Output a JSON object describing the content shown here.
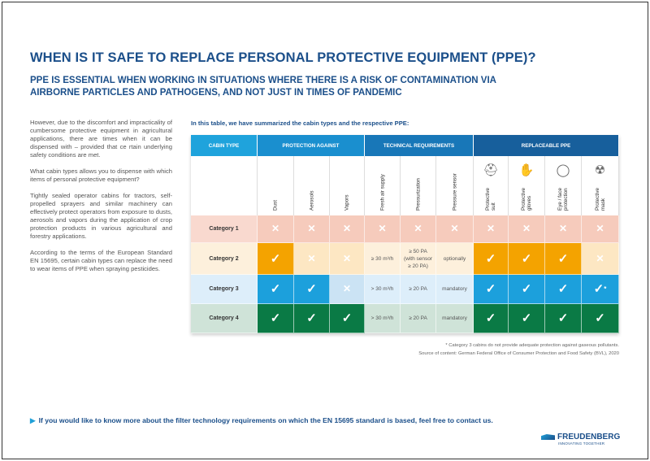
{
  "title": "WHEN IS IT SAFE TO REPLACE PERSONAL PROTECTIVE EQUIPMENT (PPE)?",
  "subtitle": "PPE IS ESSENTIAL WHEN WORKING IN SITUATIONS WHERE THERE IS A RISK OF CONTAMINATION VIA AIRBORNE PARTICLES AND PATHOGENS, AND NOT JUST IN TIMES OF PANDEMIC",
  "left_text": [
    "However, due to the discomfort and impracticality of cumbersome protective equipment in agricultural applications, there are times when it can be dispensed with – provided that ce rtain underlying safety conditions are met.",
    "What cabin types allows you to dispense with which items of personal protective equipment?",
    "Tightly sealed operator cabins for tractors, self-propelled sprayers and similar machinery can effectively protect operators from exposure to dusts, aerosols and vapors during the application of crop protection products in various agricultural and forestry applications.",
    "According to the terms of the European Standard EN 15695, certain cabin types can replace the need to wear items of PPE when spraying pesticides."
  ],
  "table_intro": "In this table, we have summarized the cabin types and the respective PPE:",
  "groups": [
    {
      "label": "CABIN TYPE",
      "color": "#1fa3dc"
    },
    {
      "label": "PROTECTION AGAINST",
      "color": "#1a8fcf"
    },
    {
      "label": "TECHNICAL REQUIREMENTS",
      "color": "#1877b8"
    },
    {
      "label": "REPLACEABLE PPE",
      "color": "#175f9c"
    }
  ],
  "columns": [
    {
      "label": "Dust"
    },
    {
      "label": "Aerosols"
    },
    {
      "label": "Vapors"
    },
    {
      "label": "Fresh air supply"
    },
    {
      "label": "Pressurization"
    },
    {
      "label": "Pressure sensor"
    },
    {
      "label": "Protective\nsuit",
      "icon": "suit-icon"
    },
    {
      "label": "Protective\ngloves",
      "icon": "gloves-icon"
    },
    {
      "label": "Eye / face\nprotection",
      "icon": "goggles-icon"
    },
    {
      "label": "Protective\nmask",
      "icon": "mask-icon"
    }
  ],
  "rows": [
    {
      "category": "Category 1",
      "colors": {
        "cat": "#f9d9cf",
        "dark": "#f5c2b1",
        "light": "#f5c2b1"
      },
      "cells": [
        [
          "cross",
          "light"
        ],
        [
          "cross",
          "light"
        ],
        [
          "cross",
          "light"
        ],
        [
          "cross",
          "light"
        ],
        [
          "cross",
          "light"
        ],
        [
          "cross",
          "light"
        ],
        [
          "cross",
          "light"
        ],
        [
          "cross",
          "light"
        ],
        [
          "cross",
          "light"
        ],
        [
          "cross",
          "light"
        ]
      ]
    },
    {
      "category": "Category 2",
      "colors": {
        "cat": "#fdf0dc",
        "dark": "#f4a300",
        "light": "#fde3b9",
        "text": "#fdf0dc"
      },
      "cells": [
        [
          "check",
          "dark"
        ],
        [
          "cross",
          "light"
        ],
        [
          "cross",
          "light"
        ],
        [
          "≥ 30 m³/h",
          "text"
        ],
        [
          "≥ 50 PA\n(with sensor\n≥ 20 PA)",
          "text"
        ],
        [
          "optionally",
          "text"
        ],
        [
          "check",
          "dark"
        ],
        [
          "check",
          "dark"
        ],
        [
          "check",
          "dark"
        ],
        [
          "cross",
          "light"
        ]
      ]
    },
    {
      "category": "Category 3",
      "colors": {
        "cat": "#ddeefa",
        "dark": "#1ca0dc",
        "light": "#c3dff3",
        "text": "#ddeefa"
      },
      "cells": [
        [
          "check",
          "dark"
        ],
        [
          "check",
          "dark"
        ],
        [
          "cross",
          "light"
        ],
        [
          "> 30 m³/h",
          "text"
        ],
        [
          "≥ 20 PA",
          "text"
        ],
        [
          "mandatory",
          "text"
        ],
        [
          "check",
          "dark"
        ],
        [
          "check",
          "dark"
        ],
        [
          "check",
          "dark"
        ],
        [
          "check*",
          "dark"
        ]
      ]
    },
    {
      "category": "Category 4",
      "colors": {
        "cat": "#cfe3d8",
        "dark": "#0a7a45",
        "light": "#cfe3d8",
        "text": "#cfe3d8"
      },
      "cells": [
        [
          "check",
          "dark"
        ],
        [
          "check",
          "dark"
        ],
        [
          "check",
          "dark"
        ],
        [
          "> 30 m³/h",
          "text"
        ],
        [
          "≥ 20 PA",
          "text"
        ],
        [
          "mandatory",
          "text"
        ],
        [
          "check",
          "dark"
        ],
        [
          "check",
          "dark"
        ],
        [
          "check",
          "dark"
        ],
        [
          "check",
          "dark"
        ]
      ]
    }
  ],
  "footnote": "* Category 3 cabins do not provide adequate protection against gaseous pollutants.",
  "source": "Source of content: German Federal Office of Consumer Protection and Food Safety (BVL), 2020",
  "cta": "If you would like to know more about the filter technology requirements on which the EN 15695 standard is based, feel free to contact us.",
  "logo": {
    "name": "FREUDENBERG",
    "tagline": "INNOVATING TOGETHER"
  }
}
